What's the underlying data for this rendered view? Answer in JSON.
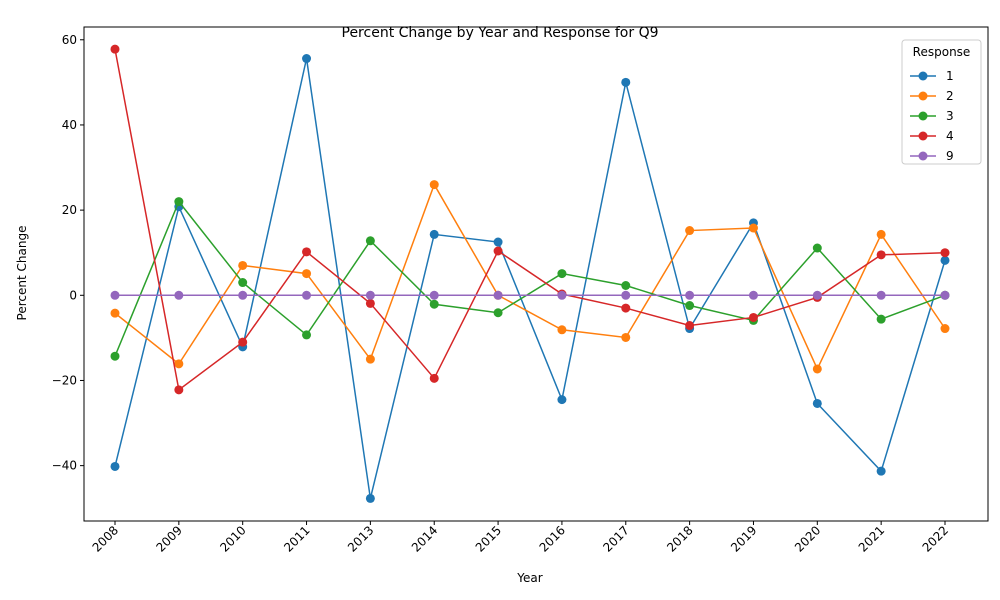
{
  "chart_data": {
    "type": "line",
    "title": "Percent Change by Year and Response for Q9",
    "xlabel": "Year",
    "ylabel": "Percent Change",
    "categories": [
      "2008",
      "2009",
      "2010",
      "2011",
      "2013",
      "2014",
      "2015",
      "2016",
      "2017",
      "2018",
      "2019",
      "2020",
      "2021",
      "2022"
    ],
    "ylim": [
      -53,
      63
    ],
    "yticks": [
      -40,
      -20,
      0,
      20,
      40,
      60
    ],
    "grid": false,
    "legend": {
      "title": "Response",
      "placement": "top-right"
    },
    "series": [
      {
        "name": "1",
        "color": "#1f77b4",
        "values": [
          -40.2,
          20.8,
          -12.1,
          55.6,
          -47.7,
          14.3,
          12.5,
          -24.5,
          50.0,
          -7.8,
          17.0,
          -25.4,
          -41.3,
          8.2
        ]
      },
      {
        "name": "2",
        "color": "#ff7f0e",
        "values": [
          -4.2,
          -16.1,
          7.0,
          5.1,
          -15.0,
          26.0,
          0.0,
          -8.1,
          -9.9,
          15.2,
          15.8,
          -17.3,
          14.3,
          -7.8
        ]
      },
      {
        "name": "3",
        "color": "#2ca02c",
        "values": [
          -14.3,
          22.0,
          3.0,
          -9.3,
          12.8,
          -2.1,
          -4.1,
          5.1,
          2.3,
          -2.4,
          -5.9,
          11.1,
          -5.6,
          0.0
        ]
      },
      {
        "name": "4",
        "color": "#d62728",
        "values": [
          57.8,
          -22.2,
          -11.0,
          10.2,
          -1.9,
          -19.5,
          10.4,
          0.3,
          -3.0,
          -7.1,
          -5.2,
          -0.5,
          9.5,
          10.0
        ]
      },
      {
        "name": "9",
        "color": "#9467bd",
        "values": [
          0,
          0,
          0,
          0,
          0,
          0,
          0,
          0,
          0,
          0,
          0,
          0,
          0,
          0
        ]
      }
    ]
  }
}
